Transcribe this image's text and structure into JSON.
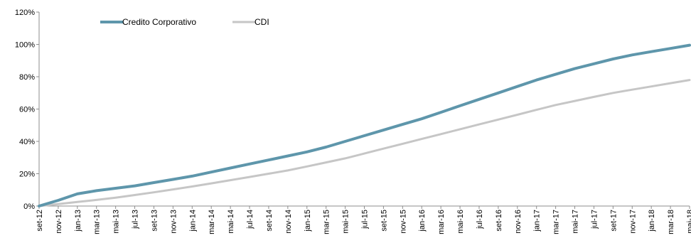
{
  "chart_data": {
    "type": "line",
    "title": "",
    "xlabel": "",
    "ylabel": "",
    "ylim": [
      0,
      120
    ],
    "y_ticks": [
      "0%",
      "20%",
      "40%",
      "60%",
      "80%",
      "100%",
      "120%"
    ],
    "grid": false,
    "legend_position": "top",
    "categories": [
      "set-12",
      "nov-12",
      "jan-13",
      "mar-13",
      "mai-13",
      "jul-13",
      "set-13",
      "nov-13",
      "jan-14",
      "mar-14",
      "mai-14",
      "jul-14",
      "set-14",
      "nov-14",
      "jan-15",
      "mar-15",
      "mai-15",
      "jul-15",
      "set-15",
      "nov-15",
      "jan-16",
      "mar-16",
      "mai-16",
      "jul-16",
      "set-16",
      "nov-16",
      "jan-17",
      "mar-17",
      "mai-17",
      "jul-17",
      "set-17",
      "nov-17",
      "jan-18",
      "mar-18",
      "mai-18"
    ],
    "series": [
      {
        "name": "Credito Corporativo",
        "color": "#5e96ab",
        "values": [
          0,
          3.5,
          7.5,
          9.5,
          11,
          12.5,
          14.5,
          16.5,
          18.5,
          21,
          23.5,
          26,
          28.5,
          31,
          33.5,
          36.5,
          40,
          43.5,
          47,
          50.5,
          54,
          58,
          62,
          66,
          70,
          74,
          78,
          81.5,
          85,
          88,
          91,
          93.5,
          95.5,
          97.5,
          99.5
        ]
      },
      {
        "name": "CDI",
        "color": "#c6c6c6",
        "values": [
          0,
          1.2,
          2.5,
          3.8,
          5.2,
          6.8,
          8.5,
          10.3,
          12.1,
          14,
          16,
          18,
          20,
          22,
          24.5,
          27,
          29.5,
          32.5,
          35.5,
          38.5,
          41.5,
          44.5,
          47.5,
          50.5,
          53.5,
          56.5,
          59.5,
          62.5,
          65,
          67.5,
          70,
          72,
          74,
          76,
          78
        ]
      }
    ]
  }
}
